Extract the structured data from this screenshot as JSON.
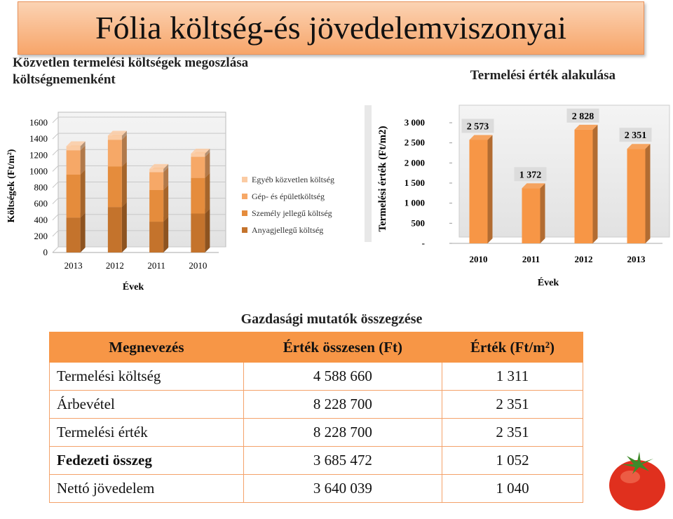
{
  "title": "Fólia költség-és jövedelemviszonyai",
  "chart_data": [
    {
      "type": "stacked_bar",
      "title": "Közvetlen termelési költségek megoszlása költségnemenként",
      "y_label": "Költségek (Ft/m²)",
      "x_label": "Évek",
      "categories": [
        "2013",
        "2012",
        "2011",
        "2010"
      ],
      "series": [
        {
          "name": "Anyagjellegű költség",
          "color": "#c4732c",
          "values": [
            430,
            560,
            380,
            480
          ]
        },
        {
          "name": "Személy jellegű költség",
          "color": "#e58c3c",
          "values": [
            530,
            500,
            390,
            440
          ]
        },
        {
          "name": "Gép- és épületköltség",
          "color": "#f6a867",
          "values": [
            300,
            330,
            220,
            260
          ]
        },
        {
          "name": "Egyéb közvetlen költség",
          "color": "#fbcba3",
          "values": [
            50,
            50,
            40,
            40
          ]
        }
      ],
      "ylim": [
        0,
        1600
      ],
      "yticks": [
        0,
        200,
        400,
        600,
        800,
        1000,
        1200,
        1400,
        1600
      ],
      "grid": true
    },
    {
      "type": "bar",
      "title": "Termelési érték alakulása",
      "y_label": "Termelési érték (Ft/m2)",
      "x_label": "Évek",
      "categories": [
        "2010",
        "2011",
        "2012",
        "2013"
      ],
      "values": [
        2573,
        1372,
        2828,
        2351
      ],
      "value_labels": [
        "2 573",
        "1 372",
        "2 828",
        "2 351"
      ],
      "color": "#f79646",
      "ylim": [
        0,
        3000
      ],
      "yticks": [
        {
          "value": 0,
          "label": "-"
        },
        500,
        {
          "value": 1000,
          "label": "1 000"
        },
        {
          "value": 1500,
          "label": "1 500"
        },
        {
          "value": 2000,
          "label": "2 000"
        },
        {
          "value": 2500,
          "label": "2 500"
        },
        {
          "value": 3000,
          "label": "3 000"
        }
      ],
      "grid": false
    }
  ],
  "table": {
    "title": "Gazdasági mutatók összegzése",
    "header": [
      "Megnevezés",
      "Érték összesen (Ft)",
      "Érték (Ft/m²)"
    ],
    "rows": [
      [
        "Termelési költség",
        "4 588 660",
        "1 311"
      ],
      [
        "Árbevétel",
        "8 228 700",
        "2 351"
      ],
      [
        "Termelési érték",
        "8 228 700",
        "2 351"
      ],
      [
        "Fedezeti összeg",
        "3 685 472",
        "1 052"
      ],
      [
        "Nettó jövedelem",
        "3 640 039",
        "1 040"
      ]
    ]
  }
}
